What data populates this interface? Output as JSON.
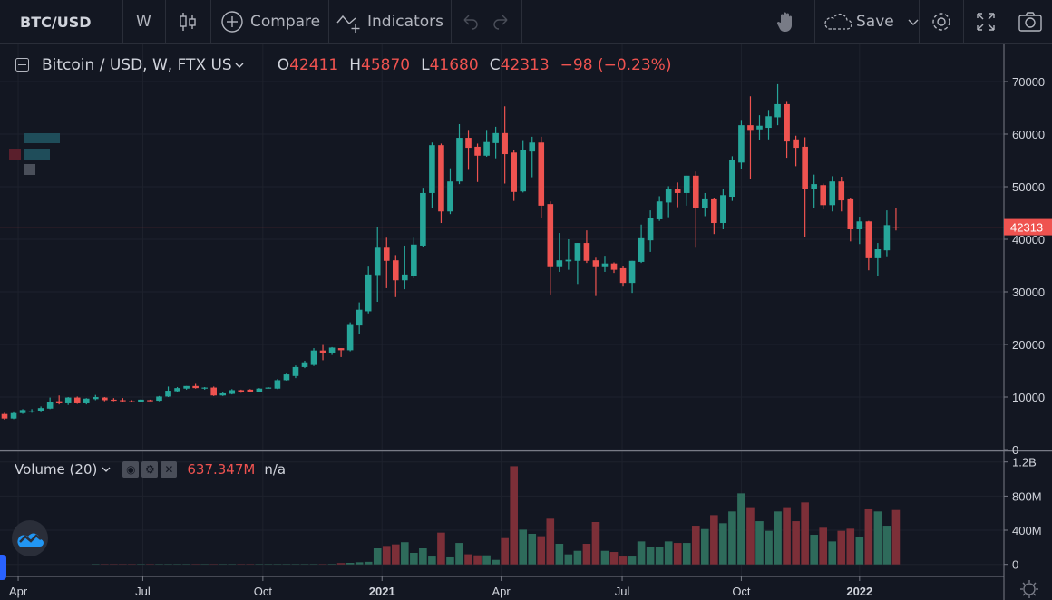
{
  "toolbar": {
    "symbol": "BTC/USD",
    "interval": "W",
    "compare_label": "Compare",
    "indicators_label": "Indicators",
    "save_label": "Save"
  },
  "legend": {
    "title": "Bitcoin / USD, W, FTX US",
    "o_label": "O",
    "o": "42411",
    "h_label": "H",
    "h": "45870",
    "l_label": "L",
    "l": "41680",
    "c_label": "C",
    "c": "42313",
    "change": "−98 (−0.23%)"
  },
  "volume_legend": {
    "title": "Volume (20)",
    "value": "637.347M",
    "ma_value": "n/a"
  },
  "colors": {
    "up": "#26a69a",
    "down": "#ef5350",
    "vol_up": "#2e6b5b",
    "vol_down": "#7c2f38",
    "background": "#131722"
  },
  "chart_data": {
    "type": "candlestick",
    "title": "Bitcoin / USD, W, FTX US",
    "price_axis": {
      "ticks": [
        "70000",
        "60000",
        "50000",
        "40000",
        "30000",
        "20000",
        "10000",
        "0"
      ],
      "ylim": [
        0,
        70000
      ]
    },
    "last_price": "42313",
    "time_axis": {
      "ticks": [
        {
          "label": "Apr",
          "index": 1.5,
          "bold": false
        },
        {
          "label": "Jul",
          "index": 15.2,
          "bold": false
        },
        {
          "label": "Oct",
          "index": 28.4,
          "bold": false
        },
        {
          "label": "2021",
          "index": 41.5,
          "bold": true
        },
        {
          "label": "Apr",
          "index": 54.6,
          "bold": false
        },
        {
          "label": "Jul",
          "index": 67.9,
          "bold": false
        },
        {
          "label": "Oct",
          "index": 81,
          "bold": false
        },
        {
          "label": "2022",
          "index": 94,
          "bold": true
        }
      ]
    },
    "volume_axis": {
      "ticks": [
        "1.2B",
        "800M",
        "400M",
        "0"
      ],
      "ylim": [
        0,
        1200000000
      ]
    },
    "candles": [
      [
        6780,
        7000,
        5700,
        5920
      ],
      [
        5920,
        7100,
        5800,
        6950
      ],
      [
        6950,
        7700,
        6800,
        7520
      ],
      [
        7300,
        7700,
        7000,
        7400
      ],
      [
        7300,
        8200,
        7100,
        7900
      ],
      [
        7800,
        9900,
        7700,
        9100
      ],
      [
        9200,
        10300,
        8600,
        8800
      ],
      [
        8800,
        10000,
        8500,
        9900
      ],
      [
        9900,
        10100,
        8700,
        8800
      ],
      [
        8800,
        9800,
        8600,
        9700
      ],
      [
        9600,
        10400,
        9400,
        10000
      ],
      [
        9900,
        10000,
        9200,
        9400
      ],
      [
        9500,
        9800,
        9200,
        9300
      ],
      [
        9400,
        9800,
        9100,
        9200
      ],
      [
        9200,
        9400,
        9000,
        9100
      ],
      [
        9100,
        9600,
        9000,
        9500
      ],
      [
        9400,
        9500,
        9200,
        9300
      ],
      [
        9300,
        10200,
        9200,
        10100
      ],
      [
        10100,
        12000,
        10000,
        11200
      ],
      [
        11100,
        11900,
        11000,
        11700
      ],
      [
        11600,
        12100,
        11400,
        12100
      ],
      [
        12100,
        12500,
        11600,
        11700
      ],
      [
        11650,
        11900,
        11400,
        11800
      ],
      [
        11800,
        12000,
        10200,
        10300
      ],
      [
        10300,
        10900,
        10200,
        10700
      ],
      [
        10600,
        11500,
        10500,
        11300
      ],
      [
        11300,
        11400,
        10800,
        10900
      ],
      [
        11400,
        11500,
        10900,
        11000
      ],
      [
        11000,
        11700,
        10900,
        11600
      ],
      [
        11700,
        11900,
        11600,
        11800
      ],
      [
        11600,
        13400,
        11500,
        13200
      ],
      [
        13200,
        14500,
        13100,
        14300
      ],
      [
        14000,
        16000,
        13600,
        15700
      ],
      [
        15700,
        16900,
        15500,
        16600
      ],
      [
        16100,
        19300,
        15900,
        18850
      ],
      [
        18850,
        19900,
        17000,
        18400
      ],
      [
        18400,
        19500,
        18000,
        19400
      ],
      [
        19300,
        19300,
        17600,
        18900
      ],
      [
        18900,
        24200,
        18700,
        23700
      ],
      [
        23600,
        28000,
        22000,
        26600
      ],
      [
        26300,
        34800,
        25900,
        33300
      ],
      [
        33200,
        42400,
        28100,
        38400
      ],
      [
        38400,
        40300,
        30700,
        35900
      ],
      [
        36000,
        37000,
        29000,
        32200
      ],
      [
        32200,
        38800,
        30500,
        33300
      ],
      [
        33100,
        40300,
        32600,
        39000
      ],
      [
        38800,
        49800,
        38500,
        48800
      ],
      [
        48800,
        58400,
        45900,
        57900
      ],
      [
        57900,
        58200,
        43100,
        45300
      ],
      [
        45300,
        53500,
        44800,
        51000
      ],
      [
        51000,
        61900,
        50500,
        59300
      ],
      [
        59300,
        60800,
        53200,
        57400
      ],
      [
        57600,
        58200,
        50900,
        55900
      ],
      [
        55900,
        60800,
        55700,
        58500
      ],
      [
        58300,
        61400,
        55400,
        60200
      ],
      [
        60200,
        65300,
        50600,
        56200
      ],
      [
        56500,
        57000,
        47300,
        49000
      ],
      [
        49100,
        58700,
        48900,
        56900
      ],
      [
        56700,
        59500,
        51800,
        58400
      ],
      [
        58400,
        59500,
        44000,
        46400
      ],
      [
        46700,
        47200,
        29500,
        34700
      ],
      [
        34700,
        41200,
        33800,
        36000
      ],
      [
        35800,
        40000,
        34200,
        36100
      ],
      [
        35900,
        39300,
        31500,
        39300
      ],
      [
        39300,
        41700,
        35500,
        35900
      ],
      [
        36000,
        36500,
        29200,
        34700
      ],
      [
        34700,
        36700,
        33800,
        35400
      ],
      [
        35400,
        35600,
        33600,
        34200
      ],
      [
        34500,
        35000,
        31000,
        31700
      ],
      [
        31700,
        35900,
        29800,
        35900
      ],
      [
        35700,
        42800,
        35500,
        40200
      ],
      [
        39800,
        45500,
        37600,
        44000
      ],
      [
        43800,
        48200,
        43500,
        47200
      ],
      [
        47000,
        50100,
        44200,
        49500
      ],
      [
        49500,
        50800,
        46100,
        48800
      ],
      [
        48800,
        52100,
        46400,
        52100
      ],
      [
        52100,
        52900,
        38400,
        46000
      ],
      [
        46000,
        48800,
        44400,
        47600
      ],
      [
        47600,
        47800,
        41000,
        43100
      ],
      [
        43100,
        49500,
        41900,
        48400
      ],
      [
        48100,
        55800,
        47300,
        55000
      ],
      [
        54600,
        62700,
        53300,
        61700
      ],
      [
        61700,
        67200,
        51500,
        60800
      ],
      [
        60900,
        63600,
        58800,
        61600
      ],
      [
        61200,
        64600,
        59000,
        63400
      ],
      [
        63200,
        69500,
        61700,
        65700
      ],
      [
        65700,
        66300,
        55500,
        58600
      ],
      [
        59000,
        59700,
        53900,
        57400
      ],
      [
        57600,
        59400,
        40500,
        49500
      ],
      [
        49500,
        52300,
        46000,
        50500
      ],
      [
        50300,
        50600,
        45700,
        46500
      ],
      [
        46500,
        52000,
        45300,
        51000
      ],
      [
        51000,
        51900,
        45300,
        47400
      ],
      [
        47600,
        47900,
        39600,
        41900
      ],
      [
        41900,
        44300,
        39100,
        43400
      ],
      [
        43400,
        43500,
        34100,
        36400
      ],
      [
        36400,
        39300,
        33100,
        38100
      ],
      [
        37900,
        45500,
        36600,
        42700
      ],
      [
        42411,
        45870,
        41680,
        42313
      ]
    ],
    "volumes": [
      0,
      0,
      0,
      0,
      0,
      0,
      0,
      0,
      0,
      0,
      4000000,
      4000000,
      4000000,
      4000000,
      4000000,
      4000000,
      4000000,
      4000000,
      4000000,
      4000000,
      4000000,
      4000000,
      4000000,
      4000000,
      4000000,
      4000000,
      4000000,
      4000000,
      4000000,
      4000000,
      4000000,
      4000000,
      4000000,
      4000000,
      4000000,
      4000000,
      5000000,
      15000000,
      18000000,
      25000000,
      30000000,
      188000000,
      216000000,
      234000000,
      260000000,
      135000000,
      188000000,
      92000000,
      372000000,
      82000000,
      251000000,
      118000000,
      106000000,
      106000000,
      53000000,
      308000000,
      1150000000,
      407000000,
      358000000,
      330000000,
      535000000,
      241000000,
      117000000,
      159000000,
      241000000,
      496000000,
      159000000,
      145000000,
      92000000,
      92000000,
      269000000,
      202000000,
      202000000,
      269000000,
      251000000,
      251000000,
      453000000,
      414000000,
      577000000,
      482000000,
      620000000,
      832000000,
      670000000,
      506000000,
      393000000,
      620000000,
      670000000,
      506000000,
      726000000,
      347000000,
      429000000,
      269000000,
      393000000,
      418000000,
      322000000,
      645000000,
      620000000,
      453000000,
      637347000
    ]
  }
}
